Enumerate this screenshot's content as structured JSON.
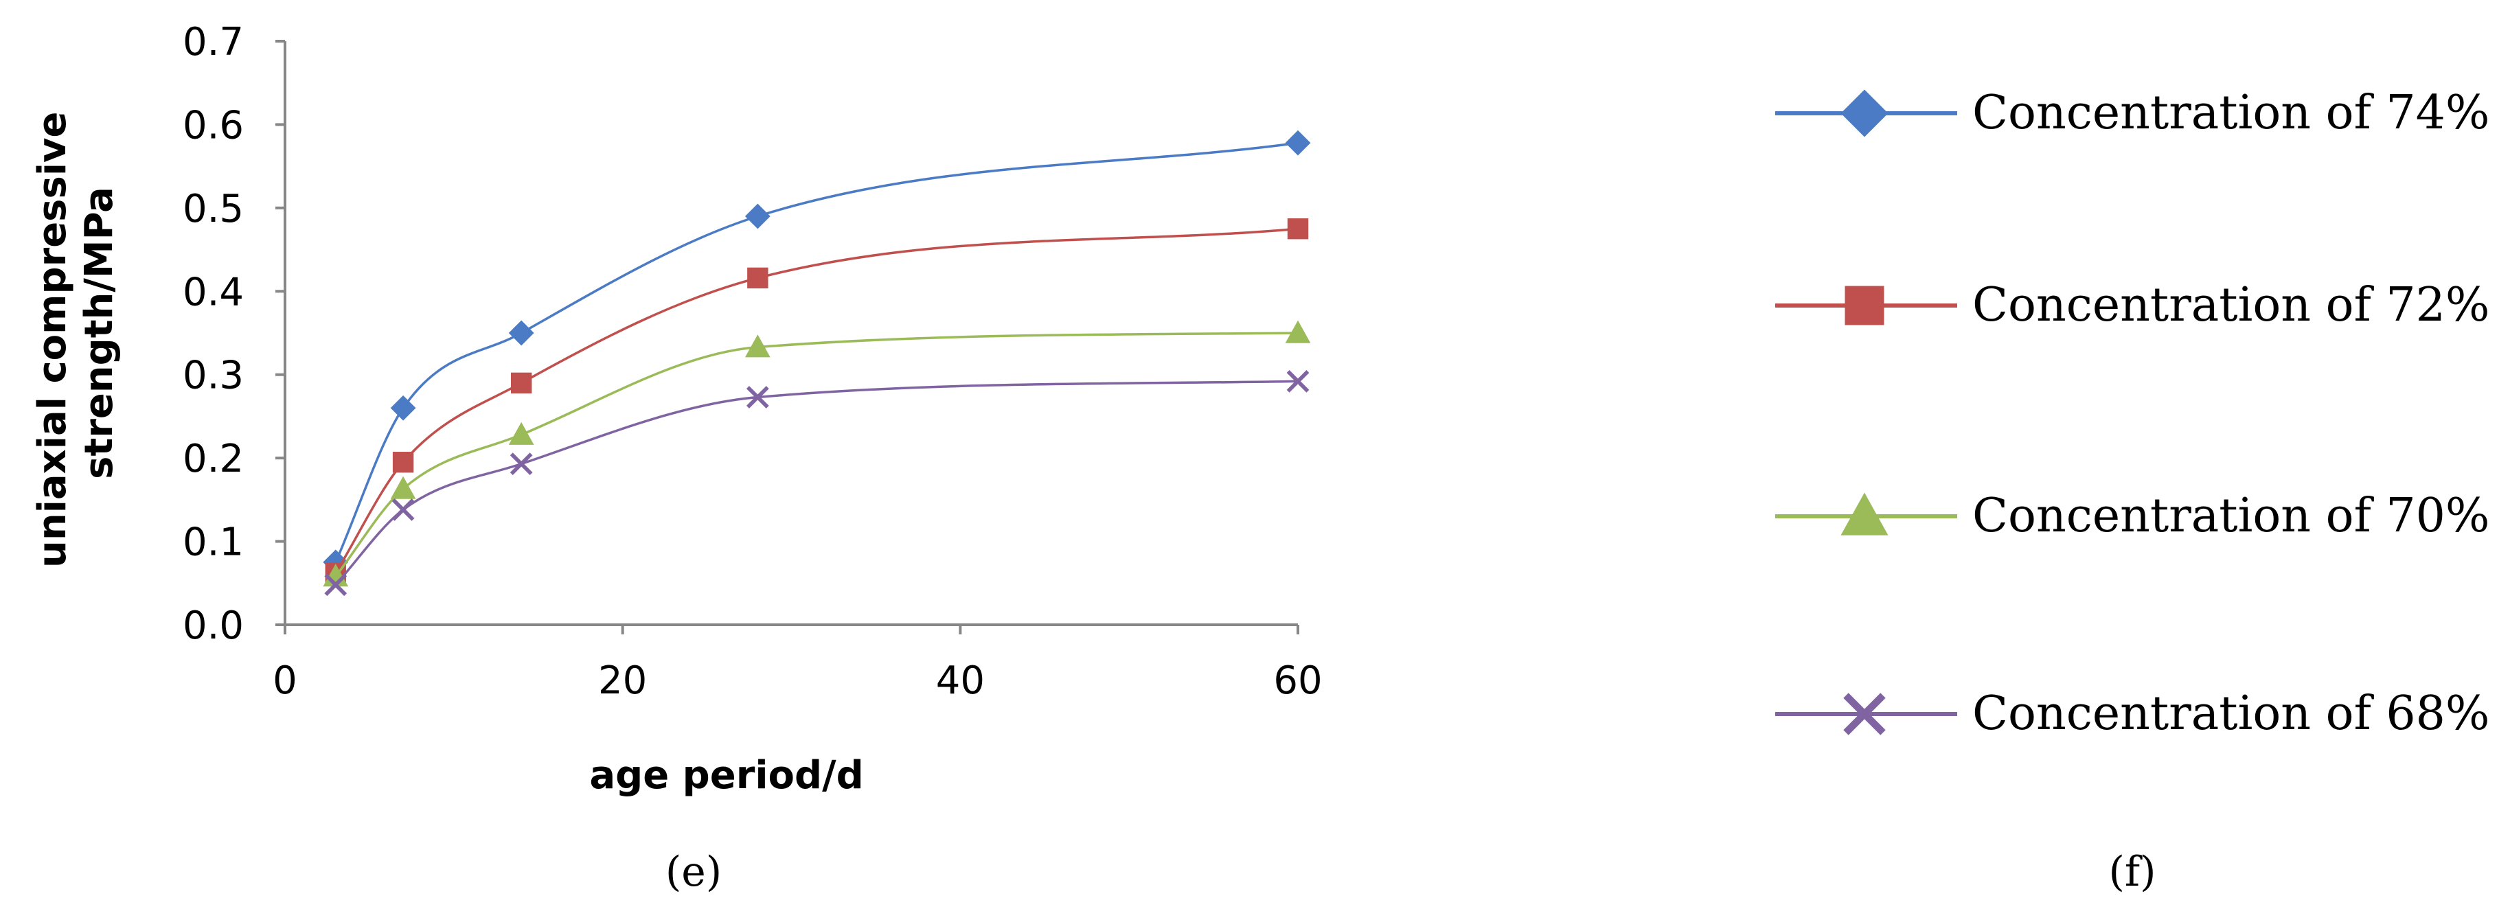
{
  "chart_data": {
    "type": "line",
    "xlabel": "age period/d",
    "ylabel_lines": [
      "uniaxial compressive",
      "strength/MPa"
    ],
    "xlim": [
      0,
      60
    ],
    "ylim": [
      0,
      0.7
    ],
    "x_ticks": [
      "0",
      "20",
      "40",
      "60"
    ],
    "y_ticks": [
      "0.0",
      "0.1",
      "0.2",
      "0.3",
      "0.4",
      "0.5",
      "0.6",
      "0.7"
    ],
    "smooth": true,
    "legend_position": "right",
    "series": [
      {
        "name": "Concentration of 74%",
        "color": "#4a7bc4",
        "marker": "diamond",
        "x": [
          3,
          7,
          14,
          28,
          60
        ],
        "y": [
          0.075,
          0.26,
          0.35,
          0.49,
          0.578
        ]
      },
      {
        "name": "Concentration of 72%",
        "color": "#c0504d",
        "marker": "square",
        "x": [
          3,
          7,
          14,
          28,
          60
        ],
        "y": [
          0.062,
          0.195,
          0.29,
          0.416,
          0.475
        ]
      },
      {
        "name": "Concentration of 70%",
        "color": "#9bbb59",
        "marker": "triangle",
        "x": [
          3,
          7,
          14,
          28,
          60
        ],
        "y": [
          0.058,
          0.163,
          0.228,
          0.333,
          0.35
        ]
      },
      {
        "name": "Concentration of 68%",
        "color": "#8064a2",
        "marker": "x",
        "x": [
          3,
          7,
          14,
          28,
          60
        ],
        "y": [
          0.048,
          0.138,
          0.193,
          0.273,
          0.292
        ]
      }
    ]
  },
  "panels": {
    "left_label": "(e)",
    "right_label": "(f)"
  }
}
